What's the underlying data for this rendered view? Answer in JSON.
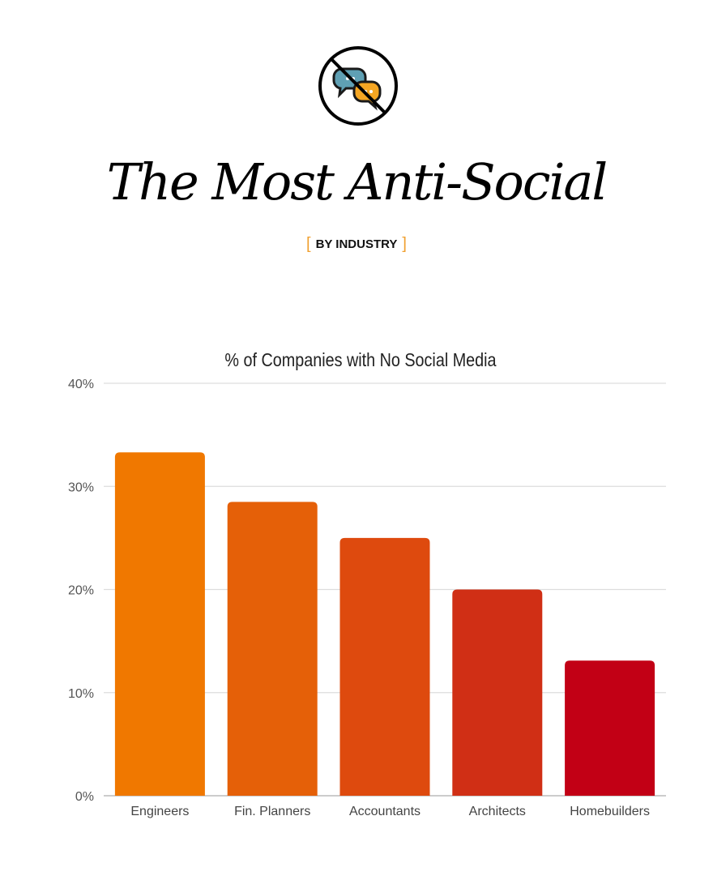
{
  "header": {
    "icon": "no-chat-bubbles-icon",
    "title": "The Most Anti-Social",
    "subtitle": "BY INDUSTRY",
    "bracket_color": "#f0a030"
  },
  "chart_data": {
    "type": "bar",
    "title": "% of Companies with No Social Media",
    "categories": [
      "Engineers",
      "Fin. Planners",
      "Accountants",
      "Architects",
      "Homebuilders"
    ],
    "values": [
      33.3,
      28.5,
      25.0,
      20.0,
      13.1
    ],
    "colors": [
      "#f07800",
      "#e56008",
      "#de4a0e",
      "#d02f15",
      "#c20015"
    ],
    "ylim": [
      0,
      40
    ],
    "yticks": [
      "0%",
      "10%",
      "20%",
      "30%",
      "40%"
    ],
    "ytick_values": [
      0,
      10,
      20,
      30,
      40
    ],
    "grid": true,
    "xlabel": "",
    "ylabel": ""
  }
}
